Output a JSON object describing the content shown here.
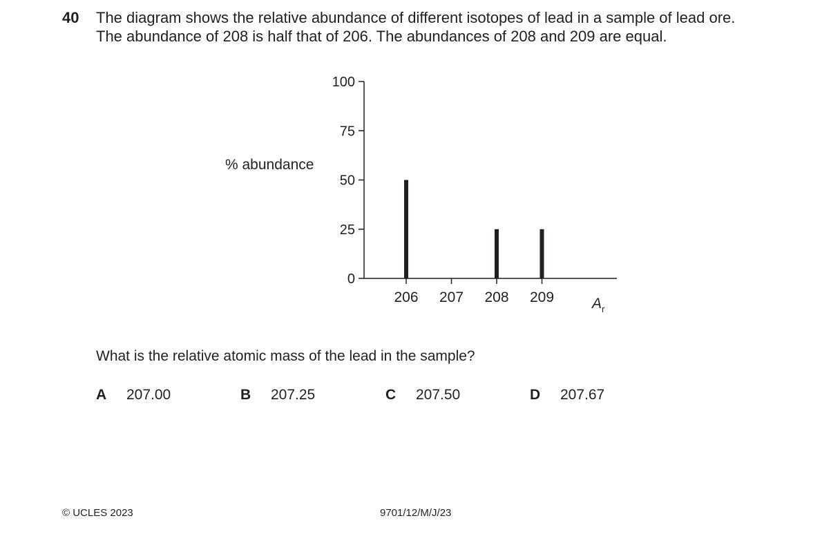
{
  "question": {
    "number": "40",
    "stem_line1": "The diagram shows the relative abundance of different isotopes of lead in a sample of lead ore.",
    "stem_line2": "The abundance of 208 is half that of 206. The abundances of 208 and 209 are equal.",
    "prompt": "What is the relative atomic mass of the lead in the sample?"
  },
  "chart_data": {
    "type": "bar",
    "ylabel": "% abundance",
    "xlabel_symbol": "A",
    "xlabel_subscript": "r",
    "ylim": [
      0,
      100
    ],
    "yticks": [
      "0",
      "25",
      "50",
      "75",
      "100"
    ],
    "categories": [
      "206",
      "207",
      "208",
      "209"
    ],
    "values": [
      50,
      0,
      25,
      25
    ],
    "grid": false
  },
  "options": [
    {
      "letter": "A",
      "value": "207.00"
    },
    {
      "letter": "B",
      "value": "207.25"
    },
    {
      "letter": "C",
      "value": "207.50"
    },
    {
      "letter": "D",
      "value": "207.67"
    }
  ],
  "footer": {
    "copyright": "© UCLES 2023",
    "code": "9701/12/M/J/23"
  }
}
